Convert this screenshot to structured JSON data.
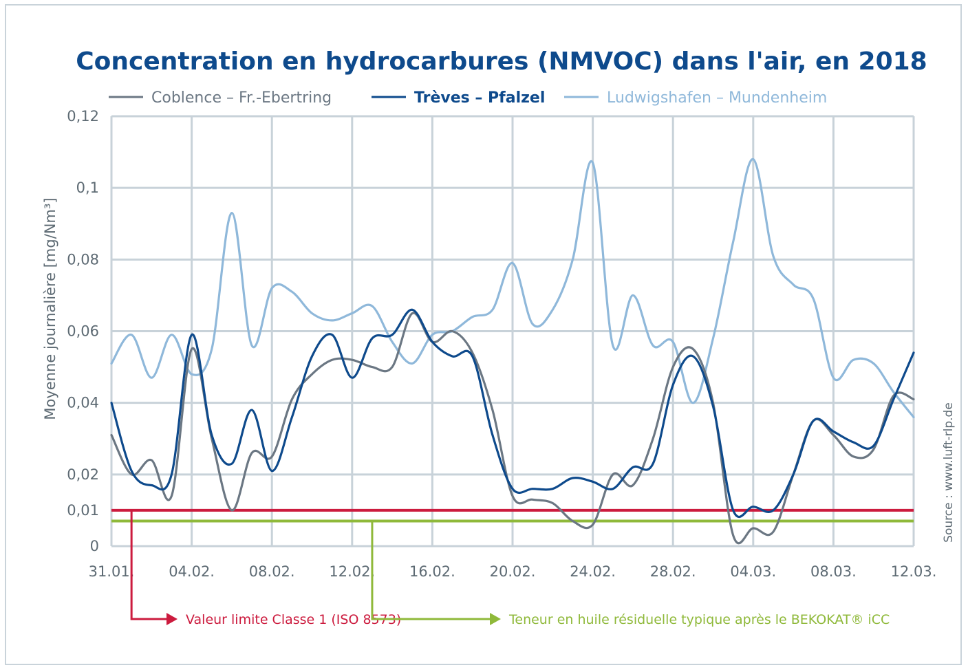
{
  "chart_data": {
    "type": "line",
    "title": "Concentration en hydrocarbures (NMVOC) dans l'air, en 2018",
    "ylabel": "Moyenne journalière [mg/Nm³]",
    "xlabel": "",
    "ylim": [
      0,
      0.12
    ],
    "y_ticks": [
      {
        "value": 0,
        "label": "0"
      },
      {
        "value": 0.01,
        "label": "0,01"
      },
      {
        "value": 0.02,
        "label": "0,02"
      },
      {
        "value": 0.04,
        "label": "0,04"
      },
      {
        "value": 0.06,
        "label": "0,06"
      },
      {
        "value": 0.08,
        "label": "0,08"
      },
      {
        "value": 0.1,
        "label": "0,1"
      },
      {
        "value": 0.12,
        "label": "0,12"
      }
    ],
    "x_range": [
      0,
      40
    ],
    "x_ticks": [
      {
        "value": 0,
        "label": "31.01."
      },
      {
        "value": 4,
        "label": "04.02."
      },
      {
        "value": 8,
        "label": "08.02."
      },
      {
        "value": 12,
        "label": "12.02."
      },
      {
        "value": 16,
        "label": "16.02."
      },
      {
        "value": 20,
        "label": "20.02."
      },
      {
        "value": 24,
        "label": "24.02."
      },
      {
        "value": 28,
        "label": "28.02."
      },
      {
        "value": 32,
        "label": "04.03."
      },
      {
        "value": 36,
        "label": "08.03."
      },
      {
        "value": 40,
        "label": "12.03."
      }
    ],
    "grid": true,
    "legend_position": "top",
    "source": "Source : www.luft-rlp.de",
    "series": [
      {
        "name": "Coblence – Fr.-Ebertring",
        "color": "#6b7783",
        "x": [
          0,
          1,
          2,
          3,
          4,
          5,
          6,
          7,
          8,
          9,
          10,
          11,
          12,
          13,
          14,
          15,
          16,
          17,
          18,
          19,
          20,
          21,
          22,
          23,
          24,
          25,
          26,
          27,
          28,
          29,
          30,
          31,
          32,
          33,
          34,
          35,
          36,
          37,
          38,
          39,
          40
        ],
        "values": [
          0.031,
          0.02,
          0.024,
          0.014,
          0.055,
          0.03,
          0.01,
          0.026,
          0.025,
          0.041,
          0.048,
          0.052,
          0.052,
          0.05,
          0.05,
          0.065,
          0.057,
          0.06,
          0.054,
          0.038,
          0.014,
          0.013,
          0.012,
          0.007,
          0.006,
          0.02,
          0.017,
          0.03,
          0.05,
          0.055,
          0.04,
          0.003,
          0.005,
          0.004,
          0.02,
          0.035,
          0.031,
          0.025,
          0.027,
          0.042,
          0.041
        ]
      },
      {
        "name": "Trèves – Pfalzel",
        "color": "#0e4a8c",
        "x": [
          0,
          1,
          2,
          3,
          4,
          5,
          6,
          7,
          8,
          9,
          10,
          11,
          12,
          13,
          14,
          15,
          16,
          17,
          18,
          19,
          20,
          21,
          22,
          23,
          24,
          25,
          26,
          27,
          28,
          29,
          30,
          31,
          32,
          33,
          34,
          35,
          36,
          37,
          38,
          39,
          40
        ],
        "values": [
          0.04,
          0.021,
          0.017,
          0.02,
          0.059,
          0.031,
          0.023,
          0.038,
          0.021,
          0.036,
          0.053,
          0.059,
          0.047,
          0.058,
          0.059,
          0.066,
          0.057,
          0.053,
          0.053,
          0.031,
          0.016,
          0.016,
          0.016,
          0.019,
          0.018,
          0.016,
          0.022,
          0.023,
          0.045,
          0.053,
          0.039,
          0.01,
          0.011,
          0.01,
          0.02,
          0.035,
          0.032,
          0.029,
          0.028,
          0.041,
          0.054
        ]
      },
      {
        "name": "Ludwigshafen – Mundenheim",
        "color": "#8fb8da",
        "x": [
          0,
          1,
          2,
          3,
          4,
          5,
          6,
          7,
          8,
          9,
          10,
          11,
          12,
          13,
          14,
          15,
          16,
          17,
          18,
          19,
          20,
          21,
          22,
          23,
          24,
          25,
          26,
          27,
          28,
          29,
          30,
          31,
          32,
          33,
          34,
          35,
          36,
          37,
          38,
          39,
          40
        ],
        "values": [
          0.051,
          0.059,
          0.047,
          0.059,
          0.048,
          0.055,
          0.093,
          0.056,
          0.072,
          0.071,
          0.065,
          0.063,
          0.065,
          0.067,
          0.057,
          0.051,
          0.059,
          0.06,
          0.064,
          0.066,
          0.079,
          0.062,
          0.066,
          0.08,
          0.107,
          0.056,
          0.07,
          0.056,
          0.057,
          0.04,
          0.058,
          0.085,
          0.108,
          0.081,
          0.073,
          0.069,
          0.047,
          0.052,
          0.051,
          0.043,
          0.036
        ]
      }
    ],
    "reference_lines": [
      {
        "name": "Valeur limite Classe 1 (ISO 8573)",
        "label": "Valeur limite Classe 1 (ISO 8573)",
        "value": 0.01,
        "color": "#cc1b3e",
        "callout_x": 1
      },
      {
        "name": "Teneur en huile résiduelle typique après le BEKOKAT® iCC",
        "label": "Teneur en huile résiduelle typique après le BEKOKAT® iCC",
        "value": 0.007,
        "color": "#8fb93a",
        "callout_x": 13
      }
    ]
  }
}
